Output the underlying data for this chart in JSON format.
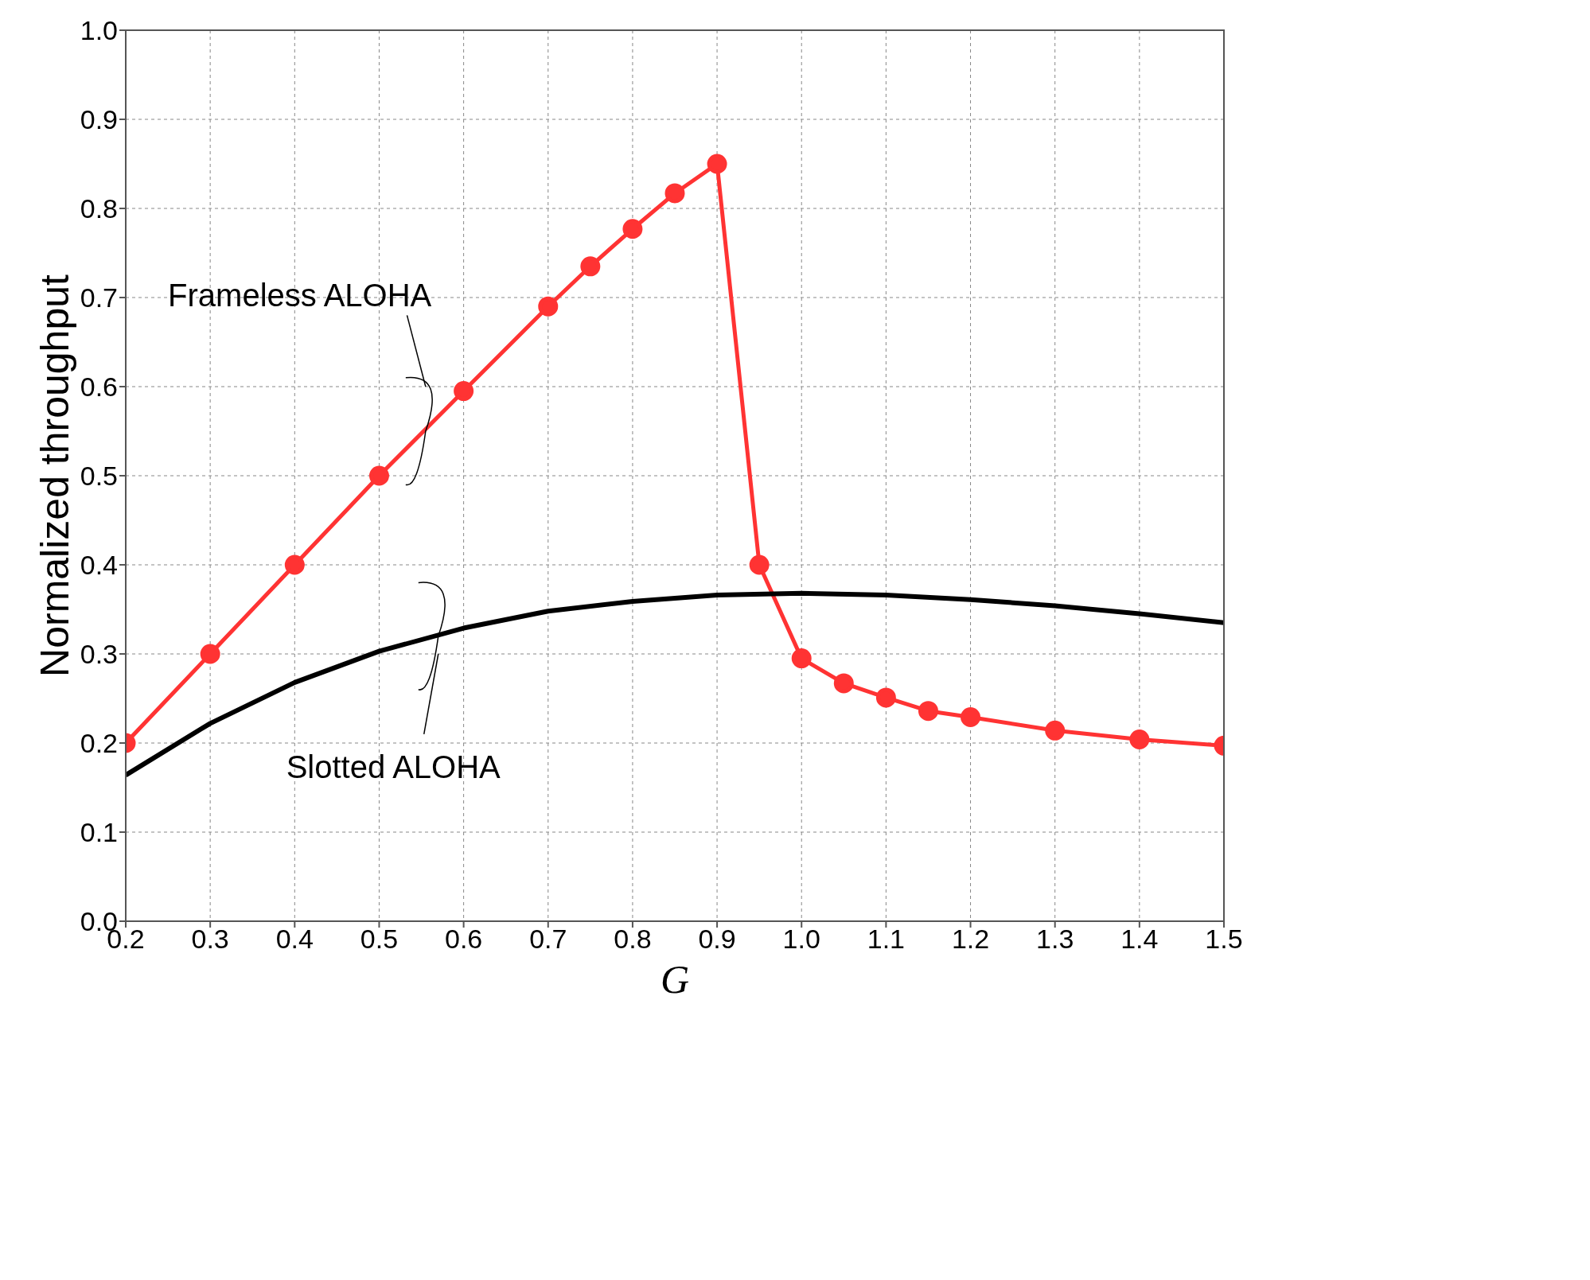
{
  "chart_data": {
    "type": "line",
    "xlabel": "G",
    "ylabel": "Normalized throughput",
    "xlim": [
      0.2,
      1.5
    ],
    "xticks": [
      0.2,
      0.3,
      0.4,
      0.5,
      0.6,
      0.7,
      0.8,
      0.9,
      {
        "value": 1,
        "label": "1.0"
      },
      1.1,
      1.2,
      1.3,
      1.4,
      1.5
    ],
    "ylim": [
      0,
      1
    ],
    "yticks": [
      {
        "value": 0,
        "label": "0.0"
      },
      0.1,
      0.2,
      0.3,
      0.4,
      0.5,
      0.6,
      0.7,
      0.8,
      0.9,
      {
        "value": 1,
        "label": "1.0"
      }
    ],
    "grid": true,
    "legend": false,
    "line_style": "solid",
    "series": [
      {
        "name": "Frameless ALOHA",
        "color": "#ff3333",
        "marker": "circle",
        "x": [
          0.2,
          0.3,
          0.4,
          0.5,
          0.6,
          0.7,
          0.75,
          0.8,
          0.85,
          0.9,
          0.95,
          1.0,
          1.05,
          1.1,
          1.15,
          1.2,
          1.3,
          1.4,
          1.5
        ],
        "values": [
          0.2,
          0.3,
          0.4,
          0.5,
          0.595,
          0.69,
          0.735,
          0.777,
          0.817,
          0.85,
          0.4,
          0.295,
          0.267,
          0.251,
          0.236,
          0.229,
          0.214,
          0.204,
          0.197
        ]
      },
      {
        "name": "Slotted ALOHA",
        "color": "#000000",
        "marker": "none",
        "x": [
          0.2,
          0.3,
          0.4,
          0.5,
          0.6,
          0.7,
          0.8,
          0.9,
          1.0,
          1.1,
          1.2,
          1.3,
          1.4,
          1.5
        ],
        "values": [
          0.164,
          0.222,
          0.268,
          0.303,
          0.329,
          0.348,
          0.359,
          0.366,
          0.368,
          0.366,
          0.361,
          0.354,
          0.345,
          0.335
        ]
      }
    ]
  }
}
